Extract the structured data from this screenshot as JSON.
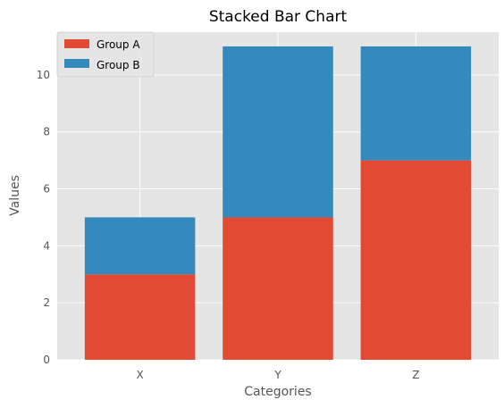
{
  "chart_data": {
    "type": "bar",
    "stacked": true,
    "title": "Stacked Bar Chart",
    "xlabel": "Categories",
    "ylabel": "Values",
    "categories": [
      "X",
      "Y",
      "Z"
    ],
    "series": [
      {
        "name": "Group A",
        "values": [
          3,
          5,
          7
        ],
        "color": "#E24A33"
      },
      {
        "name": "Group B",
        "values": [
          2,
          6,
          4
        ],
        "color": "#348ABD"
      }
    ],
    "ylim": [
      0,
      11.5
    ],
    "yticks": [
      0,
      2,
      4,
      6,
      8,
      10
    ],
    "grid": true,
    "legend_position": "top-left",
    "colors": {
      "plot_background": "#E5E5E5",
      "grid": "#FFFFFF"
    }
  }
}
